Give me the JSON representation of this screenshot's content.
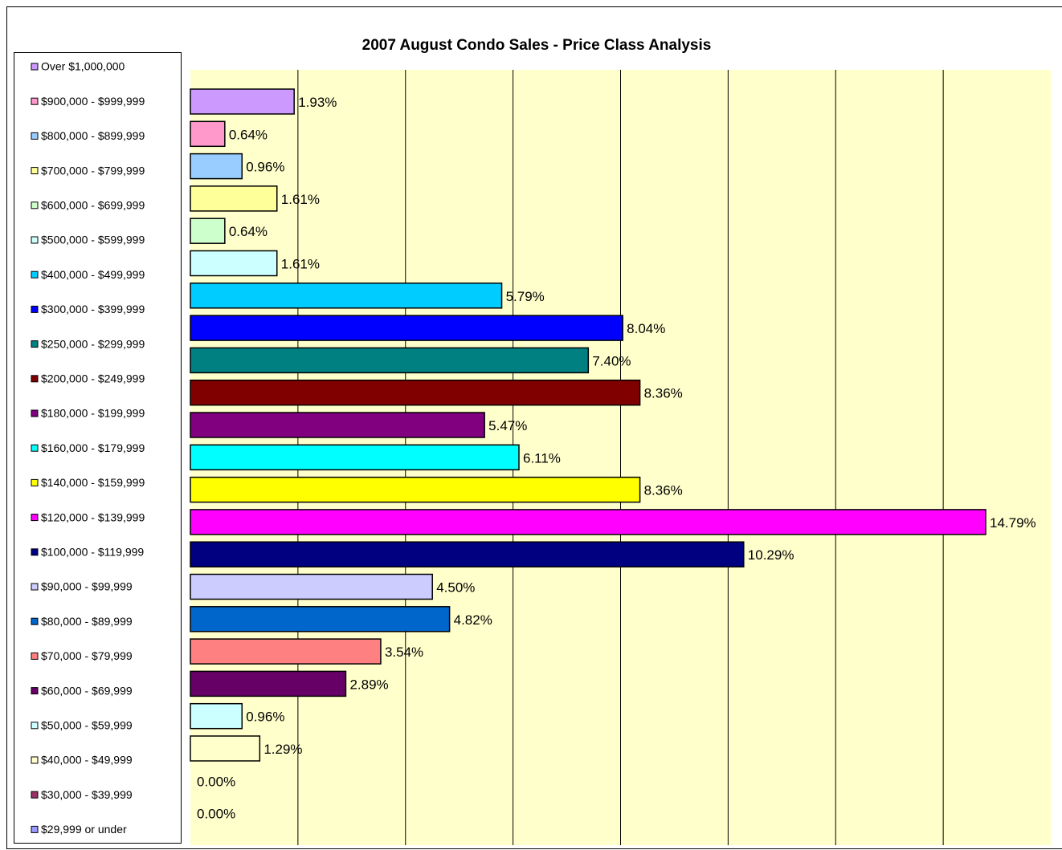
{
  "chart_data": {
    "type": "bar",
    "orientation": "horizontal",
    "title": "2007 August Condo Sales - Price Class Analysis",
    "categories": [
      "Over $1,000,000",
      "$900,000 - $999,999",
      "$800,000 - $899,999",
      "$700,000 - $799,999",
      "$600,000 - $699,999",
      "$500,000 - $599,999",
      "$400,000 - $499,999",
      "$300,000 - $399,999",
      "$250,000 - $299,999",
      "$200,000 - $249,999",
      "$180,000 - $199,999",
      "$160,000 - $179,999",
      "$140,000 - $159,999",
      "$120,000 - $139,999",
      "$100,000 - $119,999",
      "$90,000 - $99,999",
      "$80,000 - $89,999",
      "$70,000 - $79,999",
      "$60,000 - $69,999",
      "$50,000 - $59,999",
      "$40,000 - $49,999",
      "$30,000 - $39,999",
      "$29,999 or under"
    ],
    "values": [
      1.93,
      0.64,
      0.96,
      1.61,
      0.64,
      1.61,
      5.79,
      8.04,
      7.4,
      8.36,
      5.47,
      6.11,
      8.36,
      14.79,
      10.29,
      4.5,
      4.82,
      3.54,
      2.89,
      0.96,
      1.29,
      0.0,
      0.0
    ],
    "value_labels": [
      "1.93%",
      "0.64%",
      "0.96%",
      "1.61%",
      "0.64%",
      "1.61%",
      "5.79%",
      "8.04%",
      "7.40%",
      "8.36%",
      "5.47%",
      "6.11%",
      "8.36%",
      "14.79%",
      "10.29%",
      "4.50%",
      "4.82%",
      "3.54%",
      "2.89%",
      "0.96%",
      "1.29%",
      "0.00%",
      "0.00%"
    ],
    "colors": [
      "#cc99ff",
      "#ff99cc",
      "#99ccff",
      "#ffff99",
      "#ccffcc",
      "#ccffff",
      "#00ccff",
      "#0000ff",
      "#008080",
      "#800000",
      "#800080",
      "#00ffff",
      "#ffff00",
      "#ff00ff",
      "#000080",
      "#ccccff",
      "#0066cc",
      "#ff8080",
      "#660066",
      "#ccffff",
      "#ffffcc",
      "#993366",
      "#9999ff"
    ],
    "xlim": [
      0,
      16
    ],
    "xticks": [
      0,
      2,
      4,
      6,
      8,
      10,
      12,
      14,
      16
    ],
    "grid": true,
    "legend": "left"
  }
}
